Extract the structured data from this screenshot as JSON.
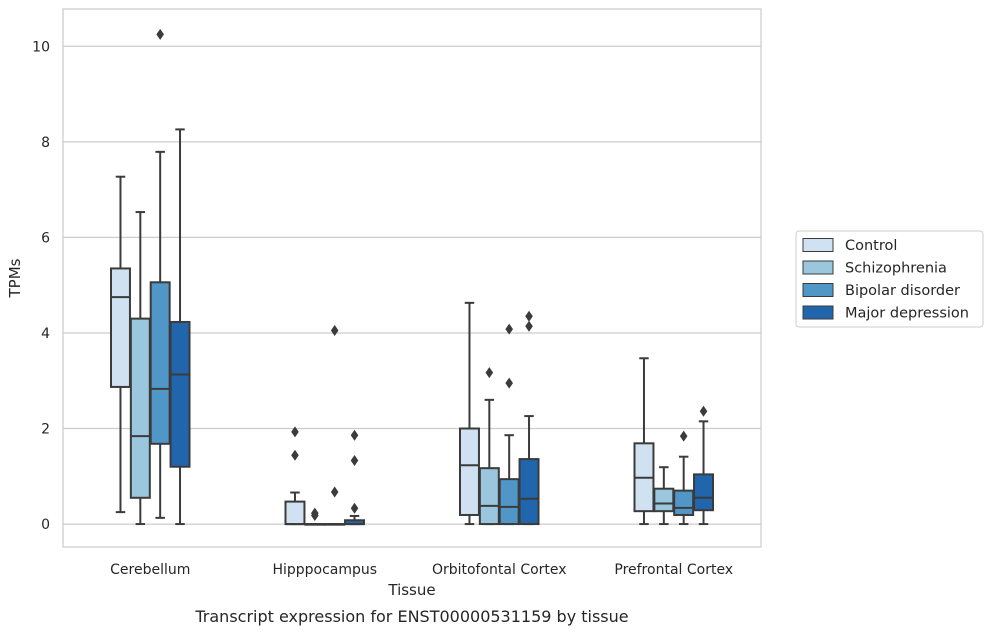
{
  "chart_data": {
    "type": "box",
    "title": "Transcript expression for ENST00000531159 by tissue",
    "xlabel": "Tissue",
    "ylabel": "TPMs",
    "ylim": [
      -0.48,
      10.78
    ],
    "yticks": [
      0,
      2,
      4,
      6,
      8,
      10
    ],
    "grid": "horizontal",
    "legend_position": "right",
    "categories": [
      "Cerebellum",
      "Hipppocampus",
      "Orbitofontal Cortex",
      "Prefrontal Cortex"
    ],
    "series": [
      {
        "name": "Control",
        "color": "#d0e1f1",
        "boxes": [
          {
            "whisker_low": 0.25,
            "q1": 2.87,
            "median": 4.75,
            "q3": 5.35,
            "whisker_high": 7.27,
            "outliers": []
          },
          {
            "whisker_low": 0.0,
            "q1": 0.0,
            "median": 0.0,
            "q3": 0.47,
            "whisker_high": 0.66,
            "outliers": [
              1.44,
              1.93
            ]
          },
          {
            "whisker_low": 0.0,
            "q1": 0.19,
            "median": 1.23,
            "q3": 2.0,
            "whisker_high": 4.63,
            "outliers": []
          },
          {
            "whisker_low": 0.0,
            "q1": 0.27,
            "median": 0.97,
            "q3": 1.69,
            "whisker_high": 3.47,
            "outliers": []
          }
        ]
      },
      {
        "name": "Schizophrenia",
        "color": "#9ac6de",
        "boxes": [
          {
            "whisker_low": 0.0,
            "q1": 0.55,
            "median": 1.84,
            "q3": 4.3,
            "whisker_high": 6.53,
            "outliers": []
          },
          {
            "whisker_low": 0.0,
            "q1": 0.0,
            "median": 0.0,
            "q3": 0.0,
            "whisker_high": 0.0,
            "outliers": [
              0.18,
              0.23
            ]
          },
          {
            "whisker_low": 0.0,
            "q1": 0.0,
            "median": 0.38,
            "q3": 1.17,
            "whisker_high": 2.6,
            "outliers": [
              3.17
            ]
          },
          {
            "whisker_low": 0.0,
            "q1": 0.27,
            "median": 0.43,
            "q3": 0.74,
            "whisker_high": 1.19,
            "outliers": []
          }
        ]
      },
      {
        "name": "Bipolar disorder",
        "color": "#5096c6",
        "boxes": [
          {
            "whisker_low": 0.13,
            "q1": 1.68,
            "median": 2.83,
            "q3": 5.06,
            "whisker_high": 7.79,
            "outliers": [
              10.25
            ]
          },
          {
            "whisker_low": 0.0,
            "q1": 0.0,
            "median": 0.0,
            "q3": 0.0,
            "whisker_high": 0.0,
            "outliers": [
              0.67,
              4.05
            ]
          },
          {
            "whisker_low": 0.0,
            "q1": 0.0,
            "median": 0.36,
            "q3": 0.94,
            "whisker_high": 1.86,
            "outliers": [
              2.95,
              4.08
            ]
          },
          {
            "whisker_low": 0.0,
            "q1": 0.19,
            "median": 0.34,
            "q3": 0.7,
            "whisker_high": 1.41,
            "outliers": [
              1.84
            ]
          }
        ]
      },
      {
        "name": "Major depression",
        "color": "#2166ac",
        "boxes": [
          {
            "whisker_low": 0.0,
            "q1": 1.2,
            "median": 3.13,
            "q3": 4.23,
            "whisker_high": 8.26,
            "outliers": []
          },
          {
            "whisker_low": 0.0,
            "q1": 0.0,
            "median": 0.0,
            "q3": 0.08,
            "whisker_high": 0.17,
            "outliers": [
              0.33,
              1.33,
              1.86
            ]
          },
          {
            "whisker_low": 0.0,
            "q1": 0.0,
            "median": 0.53,
            "q3": 1.36,
            "whisker_high": 2.26,
            "outliers": [
              4.14,
              4.35
            ]
          },
          {
            "whisker_low": 0.0,
            "q1": 0.29,
            "median": 0.55,
            "q3": 1.04,
            "whisker_high": 2.15,
            "outliers": [
              2.36
            ]
          }
        ]
      }
    ]
  }
}
